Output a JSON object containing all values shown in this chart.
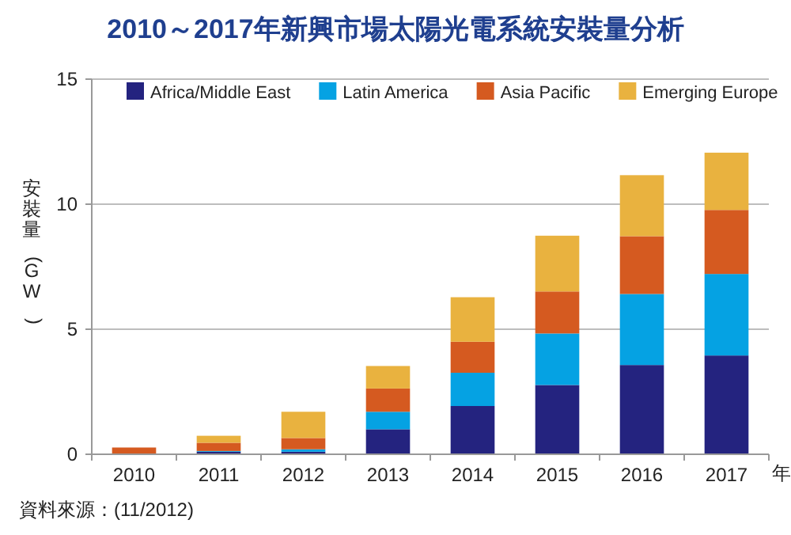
{
  "chart_data": {
    "type": "bar",
    "stacked": true,
    "title": "2010～2017年新興市場太陽光電系統安裝量分析",
    "xlabel": "年",
    "ylabel": "安裝量(GW)",
    "categories": [
      "2010",
      "2011",
      "2012",
      "2013",
      "2014",
      "2015",
      "2016",
      "2017"
    ],
    "series": [
      {
        "name": "Africa/Middle East",
        "color": "#24237f",
        "values": [
          0,
          0.1,
          0.1,
          1.0,
          1.93,
          2.77,
          3.57,
          3.95
        ]
      },
      {
        "name": "Latin America",
        "color": "#05a2e3",
        "values": [
          0,
          0.03,
          0.1,
          0.7,
          1.33,
          2.06,
          2.84,
          3.26
        ]
      },
      {
        "name": "Asia Pacific",
        "color": "#d55a20",
        "values": [
          0.27,
          0.33,
          0.45,
          0.93,
          1.24,
          1.68,
          2.31,
          2.56
        ]
      },
      {
        "name": "Emerging Europe",
        "color": "#e9b23f",
        "values": [
          0,
          0.28,
          1.05,
          0.9,
          1.78,
          2.23,
          2.44,
          2.29
        ]
      }
    ],
    "ylim": [
      0,
      15
    ],
    "yticks": [
      0,
      5,
      10,
      15
    ],
    "grid": "y",
    "legend": "top",
    "annotations": [
      "資料來源：(11/2012)"
    ]
  }
}
